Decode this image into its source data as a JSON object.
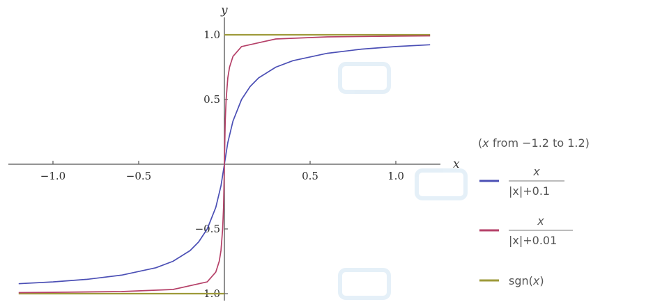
{
  "chart_data": {
    "type": "line",
    "xlabel": "x",
    "ylabel": "y",
    "xlim": [
      -1.2,
      1.2
    ],
    "ylim": [
      -1.0,
      1.0
    ],
    "x_ticks": [
      {
        "value": -1.0,
        "label": "−1.0"
      },
      {
        "value": -0.5,
        "label": "−0.5"
      },
      {
        "value": 0.5,
        "label": "0.5"
      },
      {
        "value": 1.0,
        "label": "1.0"
      }
    ],
    "y_ticks": [
      {
        "value": 1.0,
        "label": "1.0"
      },
      {
        "value": 0.5,
        "label": "0.5"
      },
      {
        "value": -0.5,
        "label": "−0.5"
      },
      {
        "value": -1.0,
        "label": "−1.0"
      }
    ],
    "range_note": "from −1.2 to 1.2",
    "series": [
      {
        "numerator": "x",
        "denominator": "|x|+0.1",
        "color": "#4b4fb5",
        "x": [
          -1.2,
          -1.0,
          -0.8,
          -0.6,
          -0.4,
          -0.3,
          -0.2,
          -0.15,
          -0.1,
          -0.05,
          -0.02,
          0.0,
          0.02,
          0.05,
          0.1,
          0.15,
          0.2,
          0.3,
          0.4,
          0.6,
          0.8,
          1.0,
          1.2
        ],
        "y": [
          -0.923,
          -0.909,
          -0.889,
          -0.857,
          -0.8,
          -0.75,
          -0.667,
          -0.6,
          -0.5,
          -0.333,
          -0.167,
          0.0,
          0.167,
          0.333,
          0.5,
          0.6,
          0.667,
          0.75,
          0.8,
          0.857,
          0.889,
          0.909,
          0.923
        ]
      },
      {
        "numerator": "x",
        "denominator": "|x|+0.01",
        "color": "#b54068",
        "x": [
          -1.2,
          -1.0,
          -0.6,
          -0.3,
          -0.1,
          -0.05,
          -0.03,
          -0.02,
          -0.01,
          -0.005,
          0.0,
          0.005,
          0.01,
          0.02,
          0.03,
          0.05,
          0.1,
          0.3,
          0.6,
          1.0,
          1.2
        ],
        "y": [
          -0.992,
          -0.99,
          -0.984,
          -0.968,
          -0.909,
          -0.833,
          -0.75,
          -0.667,
          -0.5,
          -0.333,
          0.0,
          0.333,
          0.5,
          0.667,
          0.75,
          0.833,
          0.909,
          0.968,
          0.984,
          0.99,
          0.992
        ]
      },
      {
        "name": "sgn(x)",
        "name_func": "sgn(",
        "name_var": "x",
        "name_close": ")",
        "color": "#9e9a3a",
        "segments": [
          {
            "x": [
              -1.2,
              0.0
            ],
            "y": [
              -1.0,
              -1.0
            ]
          },
          {
            "x": [
              0.0,
              1.2
            ],
            "y": [
              1.0,
              1.0
            ]
          }
        ]
      }
    ]
  }
}
